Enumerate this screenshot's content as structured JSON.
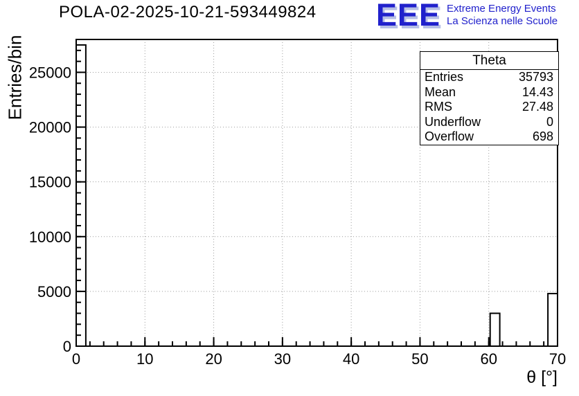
{
  "colors": {
    "logo_blue": "#2121cc",
    "logo_shadow": "#b7bfe6",
    "grid_gray": "#9c9c9c",
    "axis_black": "#000000"
  },
  "logo": {
    "acronym": "EEE",
    "line1": "Extreme Energy Events",
    "line2": "La Scienza nelle Scuole"
  },
  "stats_box": {
    "title": "Theta",
    "rows": [
      {
        "label": "Entries",
        "value": "35793"
      },
      {
        "label": "Mean",
        "value": "14.43"
      },
      {
        "label": "RMS",
        "value": "27.48"
      },
      {
        "label": "Underflow",
        "value": "0"
      },
      {
        "label": "Overflow",
        "value": "698"
      }
    ]
  },
  "chart_data": {
    "type": "bar",
    "subtype": "histogram",
    "title": "POLA-02-2025-10-21-593449824",
    "xlabel": "θ [°]",
    "ylabel": "Entries/bin",
    "xlim": [
      0,
      70
    ],
    "ylim": [
      0,
      28000
    ],
    "x_major_ticks": [
      0,
      10,
      20,
      30,
      40,
      50,
      60,
      70
    ],
    "y_major_ticks": [
      0,
      5000,
      10000,
      15000,
      20000,
      25000
    ],
    "x_minor_divisions": 5,
    "y_minor_divisions": 5,
    "grid": "dotted",
    "legend": "none",
    "bins": [
      {
        "x0": 0.0,
        "x1": 1.4,
        "count": 27500
      },
      {
        "x0": 60.2,
        "x1": 61.6,
        "count": 3000
      },
      {
        "x0": 68.6,
        "x1": 70.0,
        "count": 4800
      }
    ]
  }
}
